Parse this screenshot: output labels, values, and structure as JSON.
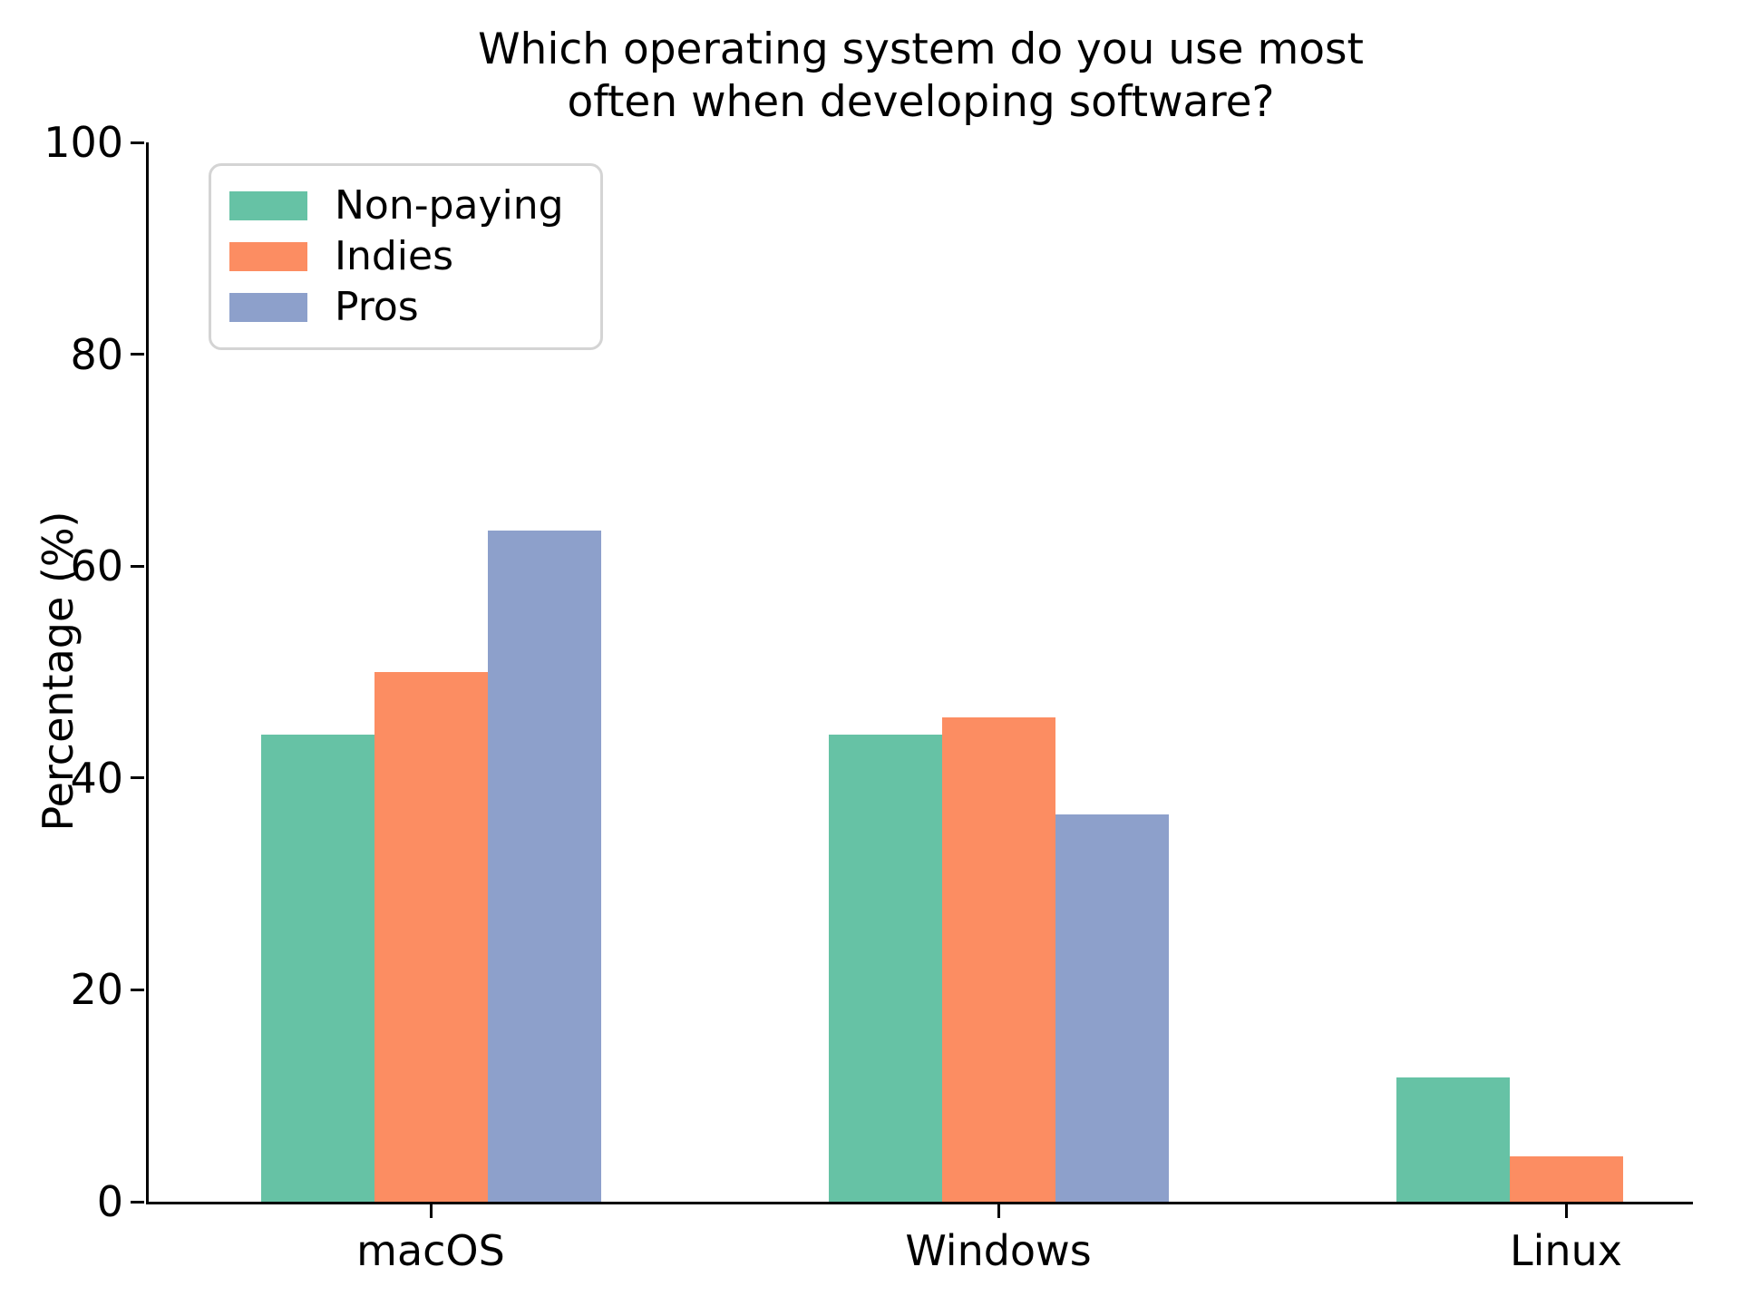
{
  "chart_data": {
    "type": "bar",
    "title": "Which operating system do you use most often when developing software?",
    "title_lines": {
      "line1": "Which operating system do you use most",
      "line2": "often when developing software?"
    },
    "xlabel": "",
    "ylabel": "Percentage (%)",
    "categories": [
      "macOS",
      "Windows",
      "Linux"
    ],
    "series": [
      {
        "name": "Non-paying",
        "color": "#66c2a5",
        "values": [
          44.1,
          44.1,
          11.7
        ]
      },
      {
        "name": "Indies",
        "color": "#fc8d62",
        "values": [
          50.0,
          45.7,
          4.3
        ]
      },
      {
        "name": "Pros",
        "color": "#8da0cb",
        "values": [
          63.4,
          36.6,
          0
        ]
      }
    ],
    "ylim": [
      0,
      100
    ],
    "yticks": [
      0,
      20,
      40,
      60,
      80,
      100
    ],
    "grid": false,
    "legend_position": "upper-left",
    "axis_color": "#000000",
    "background_color": "#ffffff"
  }
}
